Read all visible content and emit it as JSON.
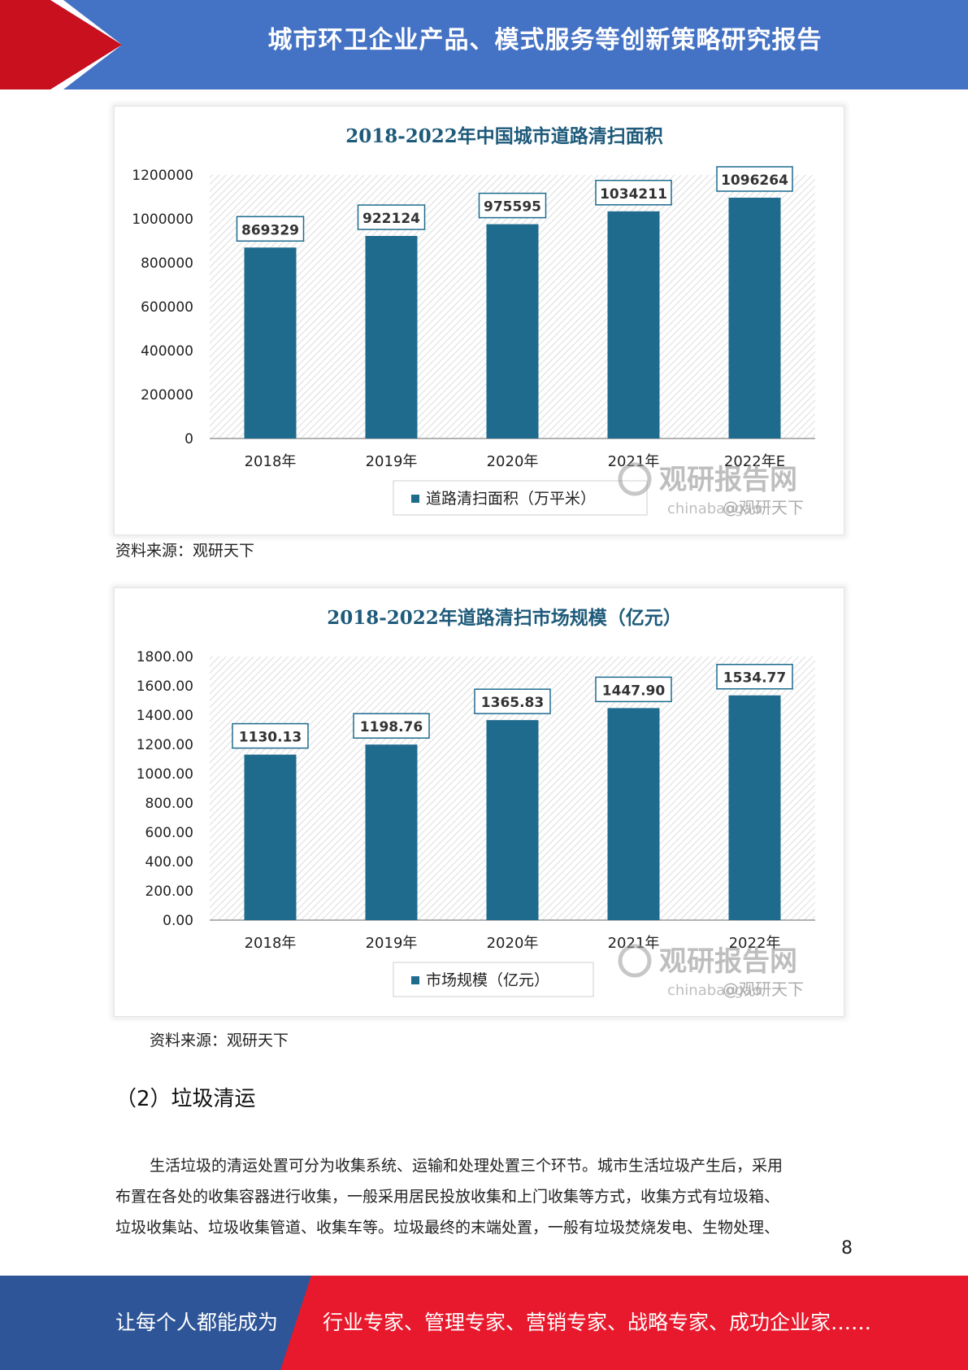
{
  "header": {
    "title": "城市环卫企业产品、模式服务等创新策略研究报告"
  },
  "charts": [
    {
      "chart_data": {
        "type": "bar",
        "title": "2018-2022年中国城市道路清扫面积",
        "categories": [
          "2018年",
          "2019年",
          "2020年",
          "2021年",
          "2022年E"
        ],
        "series": [
          {
            "name": "道路清扫面积（万平米）",
            "values": [
              869329,
              922124,
              975595,
              1034211,
              1096264
            ]
          }
        ],
        "value_labels": [
          "869329",
          "922124",
          "975595",
          "1034211",
          "1096264"
        ],
        "yticks": [
          "0",
          "200000",
          "400000",
          "600000",
          "800000",
          "1000000",
          "1200000"
        ],
        "ylim": [
          0,
          1200000
        ],
        "legend": "bottom",
        "grid": false
      },
      "colors": {
        "bar": "#1e6b8e"
      },
      "watermark": {
        "brand": "观研报告网",
        "domain": "chinabaogao",
        "handle": "@观研天下"
      }
    },
    {
      "chart_data": {
        "type": "bar",
        "title": "2018-2022年道路清扫市场规模（亿元）",
        "categories": [
          "2018年",
          "2019年",
          "2020年",
          "2021年",
          "2022年"
        ],
        "series": [
          {
            "name": "市场规模（亿元）",
            "values": [
              1130.13,
              1198.76,
              1365.83,
              1447.9,
              1534.77
            ]
          }
        ],
        "value_labels": [
          "1130.13",
          "1198.76",
          "1365.83",
          "1447.90",
          "1534.77"
        ],
        "yticks": [
          "0.00",
          "200.00",
          "400.00",
          "600.00",
          "800.00",
          "1000.00",
          "1200.00",
          "1400.00",
          "1600.00",
          "1800.00"
        ],
        "ylim": [
          0,
          1800
        ],
        "legend": "bottom",
        "grid": false
      },
      "colors": {
        "bar": "#1e6b8e"
      },
      "watermark": {
        "brand": "观研报告网",
        "domain": "chinabaogao",
        "handle": "@观研天下"
      }
    }
  ],
  "source1": "资料来源：观研天下",
  "source2": "资料来源：观研天下",
  "section": {
    "title": "（2）垃圾清运"
  },
  "paragraph": {
    "line1": "生活垃圾的清运处置可分为收集系统、运输和处理处置三个环节。城市生活垃圾产生后，采用",
    "line2": "布置在各处的收集容器进行收集，一般采用居民投放收集和上门收集等方式，收集方式有垃圾箱、",
    "line3": "垃圾收集站、垃圾收集管道、收集车等。垃圾最终的末端处置，一般有垃圾焚烧发电、生物处理、"
  },
  "page_number": "8",
  "footer": {
    "left": "让每个人都能成为",
    "right": "行业专家、管理专家、营销专家、战略专家、成功企业家……"
  },
  "colors": {
    "header_blue": "#4472c4",
    "header_red": "#c8101e",
    "footer_blue": "#2e5597",
    "footer_red": "#e8192c"
  }
}
